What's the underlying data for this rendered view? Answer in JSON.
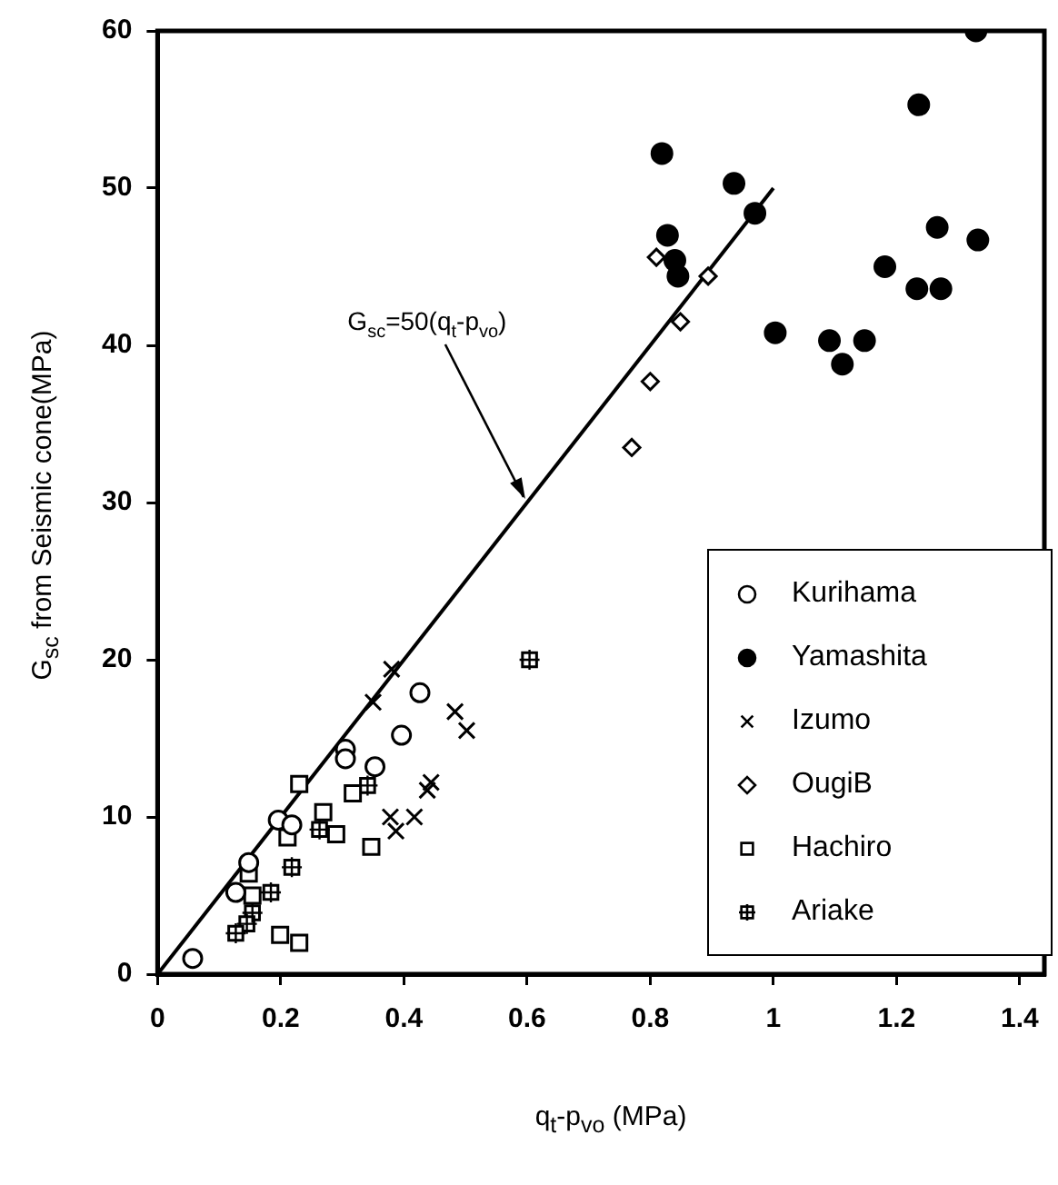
{
  "chart_data": {
    "type": "scatter",
    "xlabel": "q$_{t}$-p$_{vo}$ (MPa)",
    "ylabel": "G$_{sc}$ from Seismic cone(MPa)",
    "xlim": [
      0,
      1.44
    ],
    "xticks": [
      0,
      0.2,
      0.4,
      0.6,
      0.8,
      1,
      1.2,
      1.4
    ],
    "ylim": [
      0,
      60
    ],
    "yticks": [
      0,
      10,
      20,
      30,
      40,
      50,
      60
    ],
    "grid": false,
    "legend": "bottom right",
    "annotations": [
      {
        "text": "G$_{sc}$=50(q$_{t}$-p$_{vo}$)",
        "x": 0.6,
        "y": 30
      }
    ],
    "series": [
      {
        "name": "Kurihama",
        "color": "#000000",
        "marker": "circle",
        "x": [
          0.057,
          0.148,
          0.127,
          0.196,
          0.218,
          0.305,
          0.305,
          0.353,
          0.396,
          0.426
        ],
        "values": [
          1.0,
          7.1,
          5.2,
          9.8,
          9.5,
          14.3,
          13.7,
          13.2,
          15.2,
          17.9
        ]
      },
      {
        "name": "Yamashita",
        "color": "#000000",
        "marker": "circle-filled",
        "x": [
          1.329,
          1.236,
          0.819,
          0.936,
          0.97,
          0.828,
          0.84,
          0.845,
          1.266,
          1.332,
          1.181,
          1.233,
          1.272,
          1.003,
          1.091,
          1.148,
          1.112
        ],
        "values": [
          60.0,
          55.3,
          52.2,
          50.3,
          48.4,
          47.0,
          45.4,
          44.4,
          47.5,
          46.7,
          45.0,
          43.6,
          43.6,
          40.8,
          40.3,
          40.3,
          38.8
        ]
      },
      {
        "name": "Izumo",
        "color": "#000000",
        "marker": "cross",
        "x": [
          0.38,
          0.35,
          0.483,
          0.502,
          0.444,
          0.438,
          0.378,
          0.387,
          0.417
        ],
        "values": [
          19.4,
          17.3,
          16.7,
          15.5,
          12.2,
          11.7,
          10.0,
          9.1,
          10.0
        ]
      },
      {
        "name": "OugiB",
        "color": "#000000",
        "marker": "diamond",
        "x": [
          0.81,
          0.894,
          0.849,
          0.8,
          0.77
        ],
        "values": [
          45.6,
          44.4,
          41.5,
          37.7,
          33.5
        ]
      },
      {
        "name": "Hachiro",
        "color": "#000000",
        "marker": "square",
        "x": [
          0.23,
          0.317,
          0.269,
          0.29,
          0.347,
          0.211,
          0.154,
          0.199,
          0.23,
          0.148
        ],
        "values": [
          12.1,
          11.5,
          10.3,
          8.9,
          8.1,
          8.7,
          5.0,
          2.5,
          2.0,
          6.4
        ]
      },
      {
        "name": "Ariake",
        "color": "#000000",
        "marker": "square-cross",
        "x": [
          0.604,
          0.341,
          0.263,
          0.218,
          0.184,
          0.154,
          0.145,
          0.127
        ],
        "values": [
          20.0,
          12.0,
          9.2,
          6.8,
          5.2,
          3.9,
          3.2,
          2.6
        ]
      },
      {
        "type": "line",
        "color": "#000000",
        "marker": "none",
        "line_style": "solid",
        "x": [
          0,
          1
        ],
        "values": [
          0,
          50
        ]
      }
    ]
  }
}
